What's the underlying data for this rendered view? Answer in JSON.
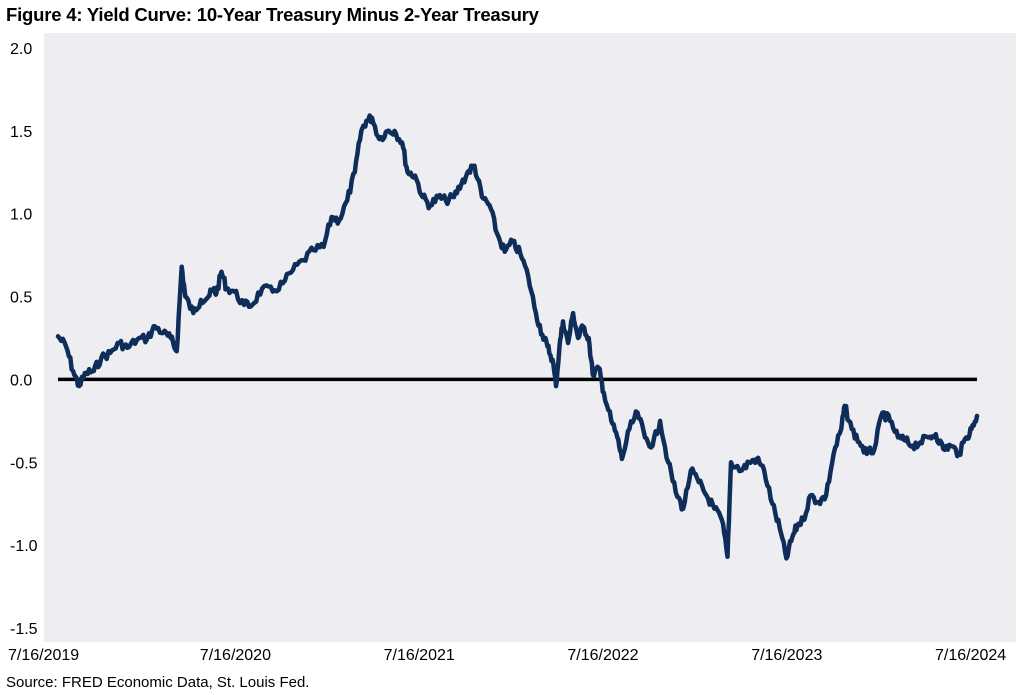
{
  "title": "Figure 4: Yield Curve: 10-Year Treasury Minus 2-Year Treasury",
  "source": "Source: FRED Economic Data, St. Louis Fed.",
  "colors": {
    "line": "#0f2d59",
    "zero_line": "#000000",
    "plot_background": "#eeeef2"
  },
  "chart_data": {
    "type": "line",
    "title": "Figure 4: Yield Curve: 10-Year Treasury Minus 2-Year Treasury",
    "xlabel": "",
    "ylabel": "",
    "ylim": [
      -1.5,
      2.0
    ],
    "yticks": [
      "2.0",
      "1.5",
      "1.0",
      "0.5",
      "0.0",
      "-0.5",
      "-1.0",
      "-1.5"
    ],
    "ytick_values": [
      2.0,
      1.5,
      1.0,
      0.5,
      0.0,
      -0.5,
      -1.0,
      -1.5
    ],
    "xticks": [
      "7/16/2019",
      "7/16/2020",
      "7/16/2021",
      "7/16/2022",
      "7/16/2023",
      "7/16/2024"
    ],
    "xlim": [
      "2019-07-16",
      "2024-07-16"
    ],
    "reference_line": {
      "y": 0.0
    },
    "grid": false,
    "series": [
      {
        "values": [
          [
            "2019-07-16",
            0.26
          ],
          [
            "2019-08-01",
            0.2
          ],
          [
            "2019-08-15",
            0.05
          ],
          [
            "2019-08-27",
            -0.04
          ],
          [
            "2019-09-10",
            0.04
          ],
          [
            "2019-09-25",
            0.05
          ],
          [
            "2019-10-10",
            0.13
          ],
          [
            "2019-10-28",
            0.16
          ],
          [
            "2019-11-15",
            0.22
          ],
          [
            "2019-12-01",
            0.19
          ],
          [
            "2019-12-20",
            0.24
          ],
          [
            "2020-01-10",
            0.25
          ],
          [
            "2020-01-25",
            0.32
          ],
          [
            "2020-02-10",
            0.28
          ],
          [
            "2020-02-25",
            0.25
          ],
          [
            "2020-03-08",
            0.17
          ],
          [
            "2020-03-18",
            0.68
          ],
          [
            "2020-03-25",
            0.5
          ],
          [
            "2020-04-10",
            0.4
          ],
          [
            "2020-04-25",
            0.48
          ],
          [
            "2020-05-10",
            0.5
          ],
          [
            "2020-05-20",
            0.54
          ],
          [
            "2020-05-26",
            0.52
          ],
          [
            "2020-06-05",
            0.65
          ],
          [
            "2020-06-15",
            0.55
          ],
          [
            "2020-06-30",
            0.53
          ],
          [
            "2020-07-20",
            0.45
          ],
          [
            "2020-08-05",
            0.45
          ],
          [
            "2020-08-25",
            0.55
          ],
          [
            "2020-09-15",
            0.53
          ],
          [
            "2020-10-05",
            0.58
          ],
          [
            "2020-10-25",
            0.66
          ],
          [
            "2020-11-15",
            0.72
          ],
          [
            "2020-12-05",
            0.78
          ],
          [
            "2020-12-25",
            0.8
          ],
          [
            "2021-01-10",
            0.98
          ],
          [
            "2021-01-25",
            0.96
          ],
          [
            "2021-02-10",
            1.08
          ],
          [
            "2021-02-25",
            1.25
          ],
          [
            "2021-03-10",
            1.5
          ],
          [
            "2021-03-20",
            1.56
          ],
          [
            "2021-03-31",
            1.58
          ],
          [
            "2021-04-15",
            1.45
          ],
          [
            "2021-05-01",
            1.5
          ],
          [
            "2021-05-15",
            1.5
          ],
          [
            "2021-05-30",
            1.43
          ],
          [
            "2021-06-10",
            1.25
          ],
          [
            "2021-06-25",
            1.23
          ],
          [
            "2021-07-10",
            1.1
          ],
          [
            "2021-07-25",
            1.05
          ],
          [
            "2021-08-10",
            1.1
          ],
          [
            "2021-08-25",
            1.08
          ],
          [
            "2021-09-10",
            1.1
          ],
          [
            "2021-09-25",
            1.18
          ],
          [
            "2021-10-10",
            1.26
          ],
          [
            "2021-10-21",
            1.29
          ],
          [
            "2021-11-05",
            1.1
          ],
          [
            "2021-11-20",
            1.05
          ],
          [
            "2021-12-05",
            0.88
          ],
          [
            "2021-12-20",
            0.77
          ],
          [
            "2022-01-05",
            0.83
          ],
          [
            "2022-01-20",
            0.76
          ],
          [
            "2022-02-05",
            0.62
          ],
          [
            "2022-02-20",
            0.4
          ],
          [
            "2022-03-05",
            0.27
          ],
          [
            "2022-03-15",
            0.2
          ],
          [
            "2022-03-25",
            0.12
          ],
          [
            "2022-04-01",
            -0.04
          ],
          [
            "2022-04-08",
            0.2
          ],
          [
            "2022-04-15",
            0.35
          ],
          [
            "2022-04-25",
            0.22
          ],
          [
            "2022-05-05",
            0.4
          ],
          [
            "2022-05-15",
            0.25
          ],
          [
            "2022-05-25",
            0.32
          ],
          [
            "2022-06-05",
            0.25
          ],
          [
            "2022-06-13",
            0.03
          ],
          [
            "2022-06-25",
            0.07
          ],
          [
            "2022-07-05",
            -0.08
          ],
          [
            "2022-07-20",
            -0.25
          ],
          [
            "2022-08-01",
            -0.35
          ],
          [
            "2022-08-10",
            -0.48
          ],
          [
            "2022-08-25",
            -0.3
          ],
          [
            "2022-09-10",
            -0.2
          ],
          [
            "2022-09-25",
            -0.35
          ],
          [
            "2022-10-10",
            -0.4
          ],
          [
            "2022-10-25",
            -0.25
          ],
          [
            "2022-11-10",
            -0.5
          ],
          [
            "2022-11-25",
            -0.68
          ],
          [
            "2022-12-10",
            -0.78
          ],
          [
            "2022-12-25",
            -0.55
          ],
          [
            "2023-01-10",
            -0.62
          ],
          [
            "2023-01-25",
            -0.7
          ],
          [
            "2023-02-10",
            -0.78
          ],
          [
            "2023-02-25",
            -0.85
          ],
          [
            "2023-03-08",
            -1.07
          ],
          [
            "2023-03-15",
            -0.5
          ],
          [
            "2023-04-05",
            -0.55
          ],
          [
            "2023-04-20",
            -0.5
          ],
          [
            "2023-05-05",
            -0.48
          ],
          [
            "2023-05-20",
            -0.55
          ],
          [
            "2023-06-05",
            -0.75
          ],
          [
            "2023-06-20",
            -0.9
          ],
          [
            "2023-07-03",
            -1.08
          ],
          [
            "2023-07-15",
            -0.95
          ],
          [
            "2023-07-25",
            -0.88
          ],
          [
            "2023-08-05",
            -0.85
          ],
          [
            "2023-08-20",
            -0.7
          ],
          [
            "2023-09-05",
            -0.74
          ],
          [
            "2023-09-20",
            -0.7
          ],
          [
            "2023-10-05",
            -0.45
          ],
          [
            "2023-10-20",
            -0.3
          ],
          [
            "2023-10-27",
            -0.16
          ],
          [
            "2023-11-10",
            -0.3
          ],
          [
            "2023-11-25",
            -0.38
          ],
          [
            "2023-12-10",
            -0.45
          ],
          [
            "2023-12-25",
            -0.42
          ],
          [
            "2024-01-10",
            -0.2
          ],
          [
            "2024-01-25",
            -0.25
          ],
          [
            "2024-02-10",
            -0.35
          ],
          [
            "2024-02-25",
            -0.37
          ],
          [
            "2024-03-10",
            -0.4
          ],
          [
            "2024-03-25",
            -0.38
          ],
          [
            "2024-04-10",
            -0.35
          ],
          [
            "2024-04-25",
            -0.33
          ],
          [
            "2024-05-10",
            -0.42
          ],
          [
            "2024-05-25",
            -0.4
          ],
          [
            "2024-06-10",
            -0.45
          ],
          [
            "2024-06-25",
            -0.35
          ],
          [
            "2024-07-05",
            -0.3
          ],
          [
            "2024-07-16",
            -0.22
          ]
        ]
      }
    ]
  }
}
